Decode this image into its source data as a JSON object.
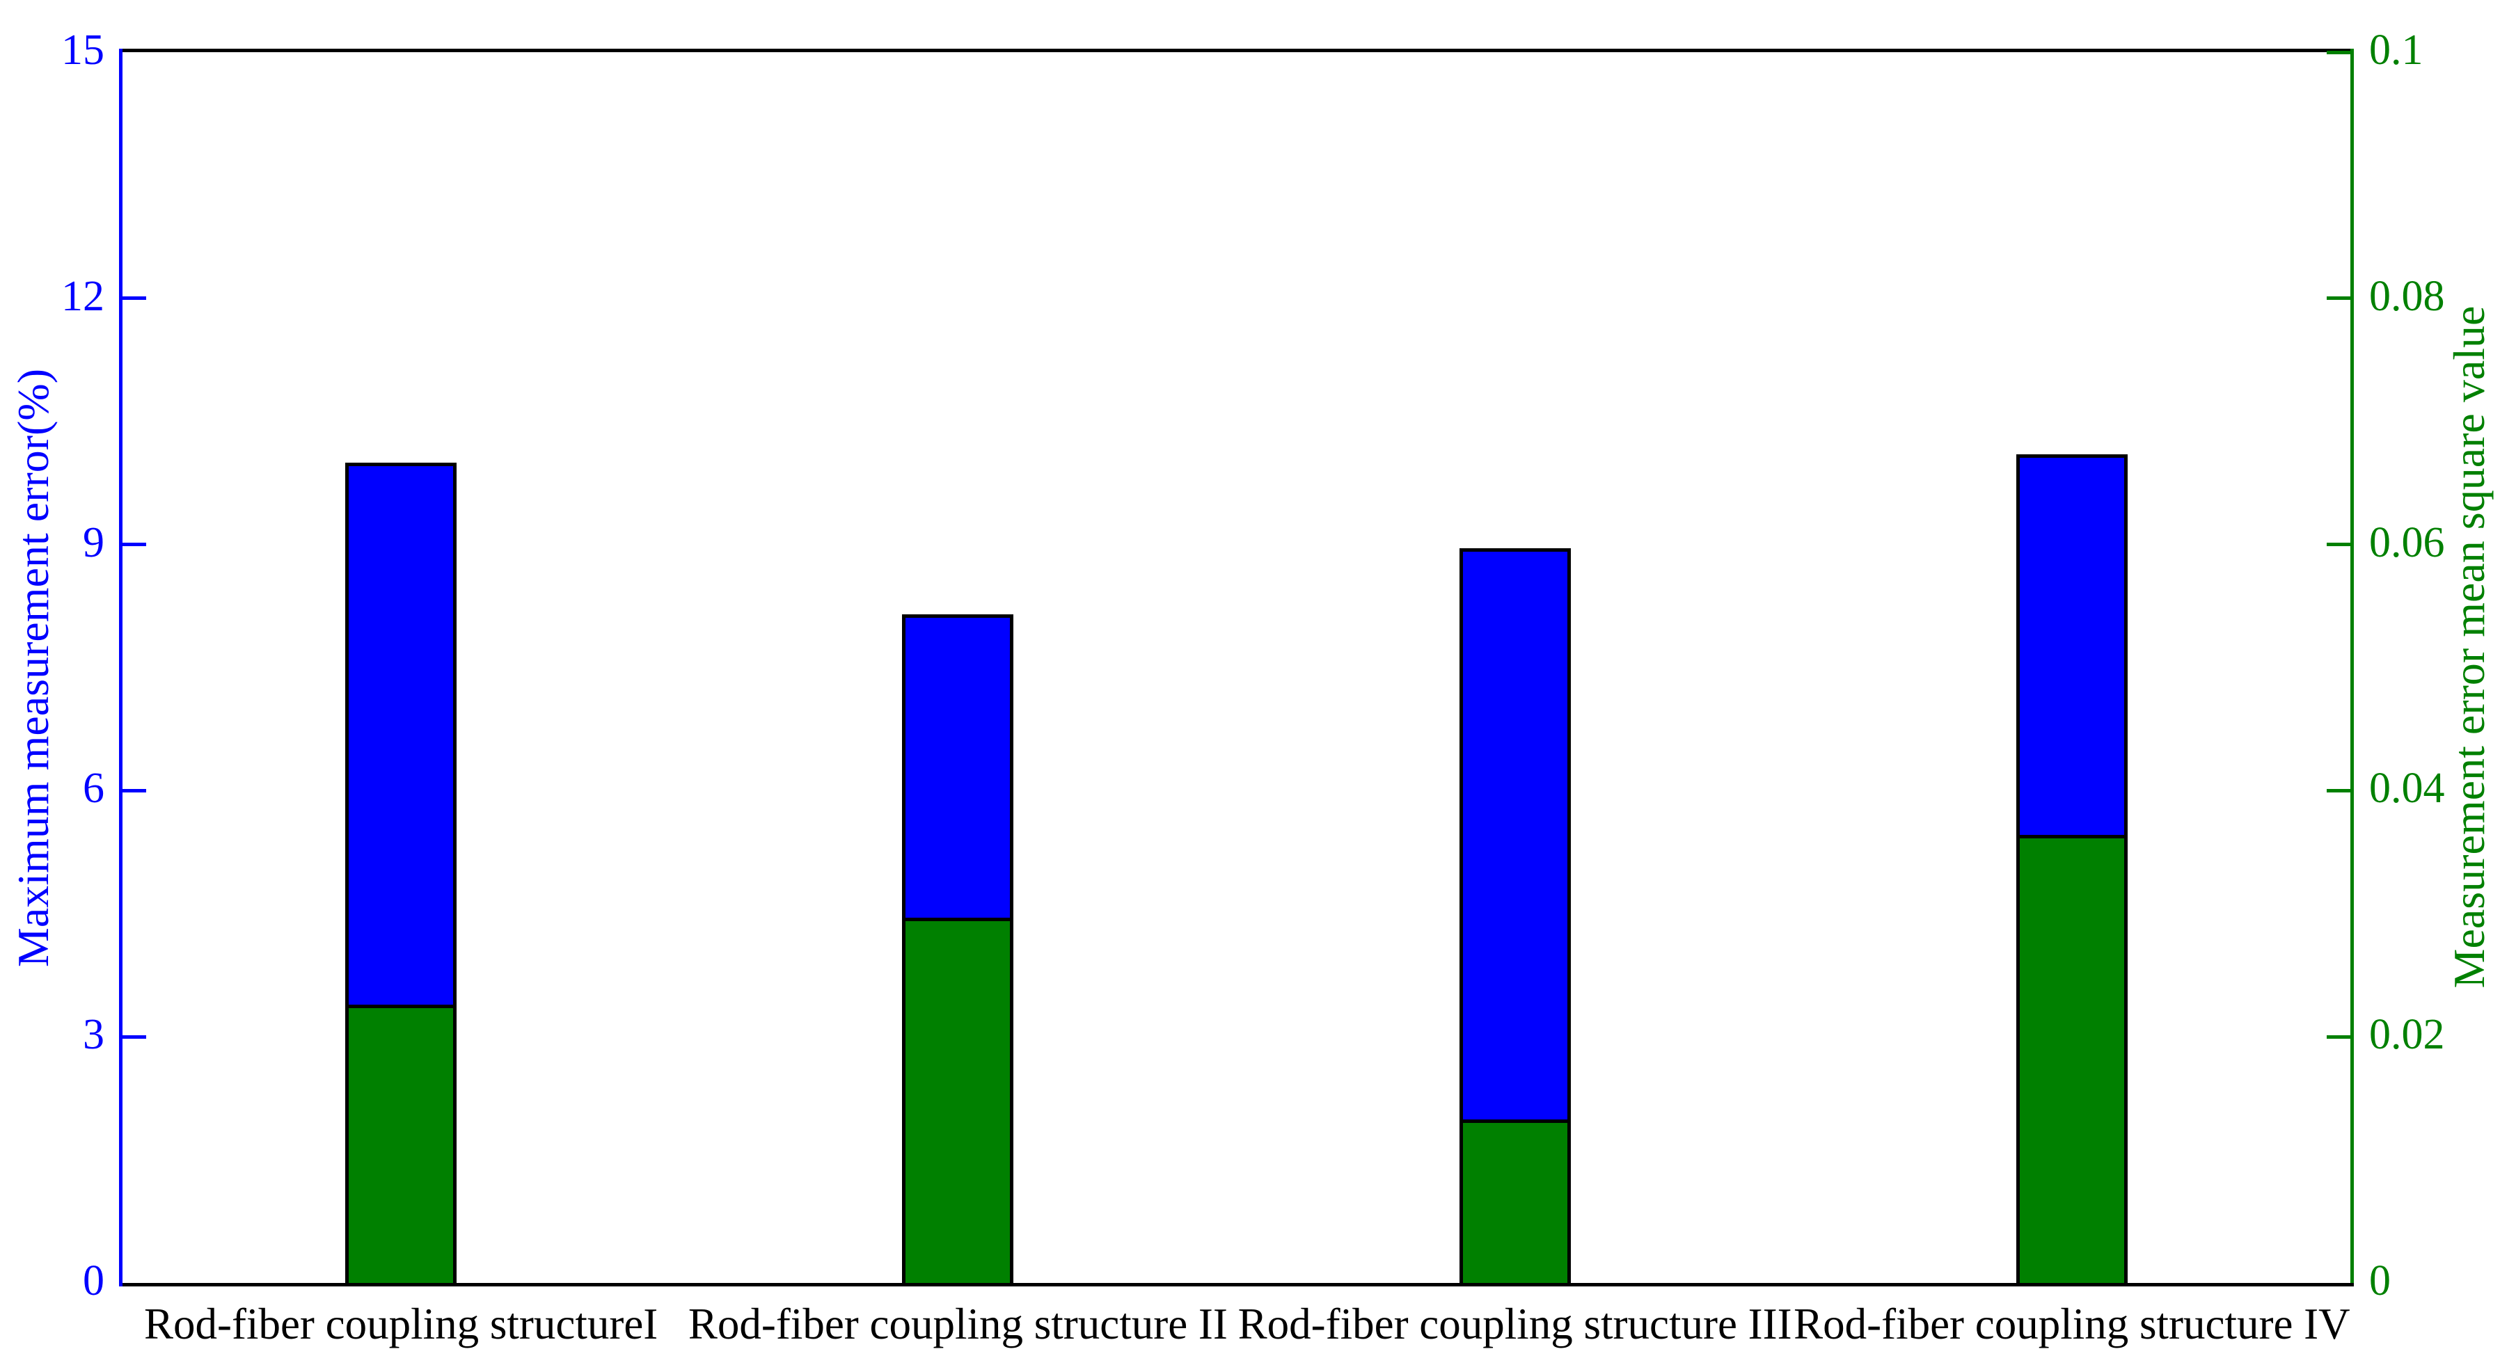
{
  "chart_data": {
    "type": "bar",
    "title": "",
    "categories": [
      "Rod-fiber coupling structureI",
      "Rod-fiber coupling structure II",
      "Rod-fiber coupling structure III",
      "Rod-fiber coupling structure IV"
    ],
    "series": [
      {
        "name": "Maximum measurement error(%)",
        "axis": "left",
        "color": "#0000ff",
        "values": [
          10.0,
          8.15,
          8.95,
          10.1
        ]
      },
      {
        "name": "Measurement error mean square value",
        "axis": "right",
        "color": "#008000",
        "values": [
          0.0226,
          0.0297,
          0.0133,
          0.0364
        ]
      }
    ],
    "axes": {
      "left": {
        "label": "Maximum measurement error(%)",
        "color": "#0000ff",
        "min": 0,
        "max": 15,
        "ticks": [
          0,
          3,
          6,
          9,
          12,
          15
        ],
        "tick_labels": [
          "0",
          "3",
          "6",
          "9",
          "12",
          "15"
        ]
      },
      "right": {
        "label": "Measurement error mean square value",
        "color": "#008000",
        "min": 0,
        "max": 0.1,
        "ticks": [
          0,
          0.02,
          0.04,
          0.06,
          0.08,
          0.1
        ],
        "tick_labels": [
          "0",
          "0.02",
          "0.04",
          "0.06",
          "0.08",
          "0.1"
        ]
      },
      "x": {
        "color": "#000000"
      }
    },
    "layout_hints": {
      "grid": false,
      "legend": false,
      "bar_outline": "#000000",
      "frame_top": true,
      "background": "#ffffff"
    }
  }
}
